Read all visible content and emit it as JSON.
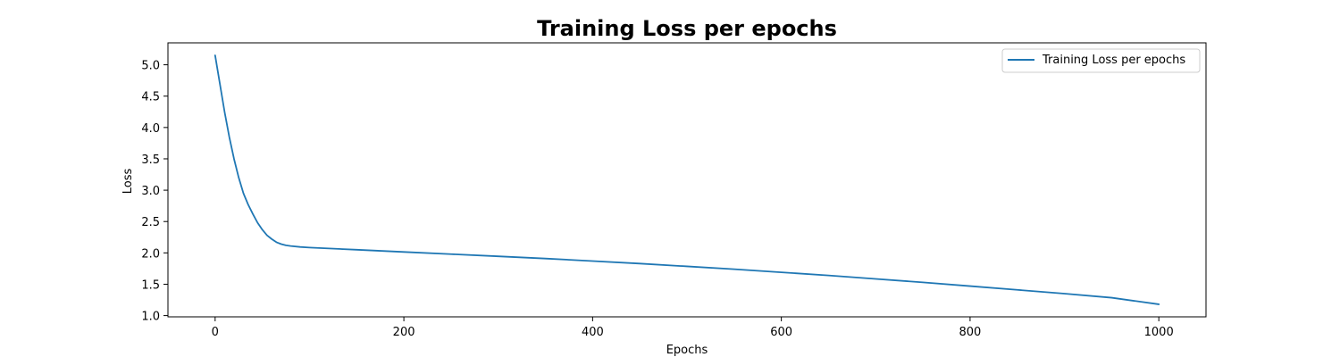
{
  "chart_data": {
    "type": "line",
    "title": "Training Loss per epochs",
    "xlabel": "Epochs",
    "ylabel": "Loss",
    "xlim": [
      -50,
      1050
    ],
    "ylim": [
      0.98,
      5.35
    ],
    "xticks": [
      0,
      200,
      400,
      600,
      800,
      1000
    ],
    "yticks": [
      1.0,
      1.5,
      2.0,
      2.5,
      3.0,
      3.5,
      4.0,
      4.5,
      5.0
    ],
    "ytick_labels": [
      "1.0",
      "1.5",
      "2.0",
      "2.5",
      "3.0",
      "3.5",
      "4.0",
      "4.5",
      "5.0"
    ],
    "grid": false,
    "legend": "top-right",
    "series": [
      {
        "name": "Training Loss per epochs",
        "color": "#1f77b4",
        "x": [
          0,
          5,
          10,
          15,
          20,
          25,
          30,
          35,
          40,
          45,
          50,
          55,
          60,
          65,
          70,
          75,
          80,
          90,
          100,
          150,
          200,
          250,
          300,
          350,
          400,
          450,
          500,
          550,
          600,
          650,
          700,
          750,
          800,
          850,
          900,
          950,
          1000
        ],
        "y": [
          5.15,
          4.7,
          4.25,
          3.85,
          3.5,
          3.2,
          2.95,
          2.77,
          2.62,
          2.48,
          2.37,
          2.28,
          2.22,
          2.17,
          2.14,
          2.12,
          2.11,
          2.095,
          2.085,
          2.05,
          2.015,
          1.98,
          1.945,
          1.91,
          1.87,
          1.83,
          1.785,
          1.74,
          1.69,
          1.64,
          1.585,
          1.53,
          1.47,
          1.41,
          1.35,
          1.285,
          1.18
        ]
      }
    ]
  }
}
